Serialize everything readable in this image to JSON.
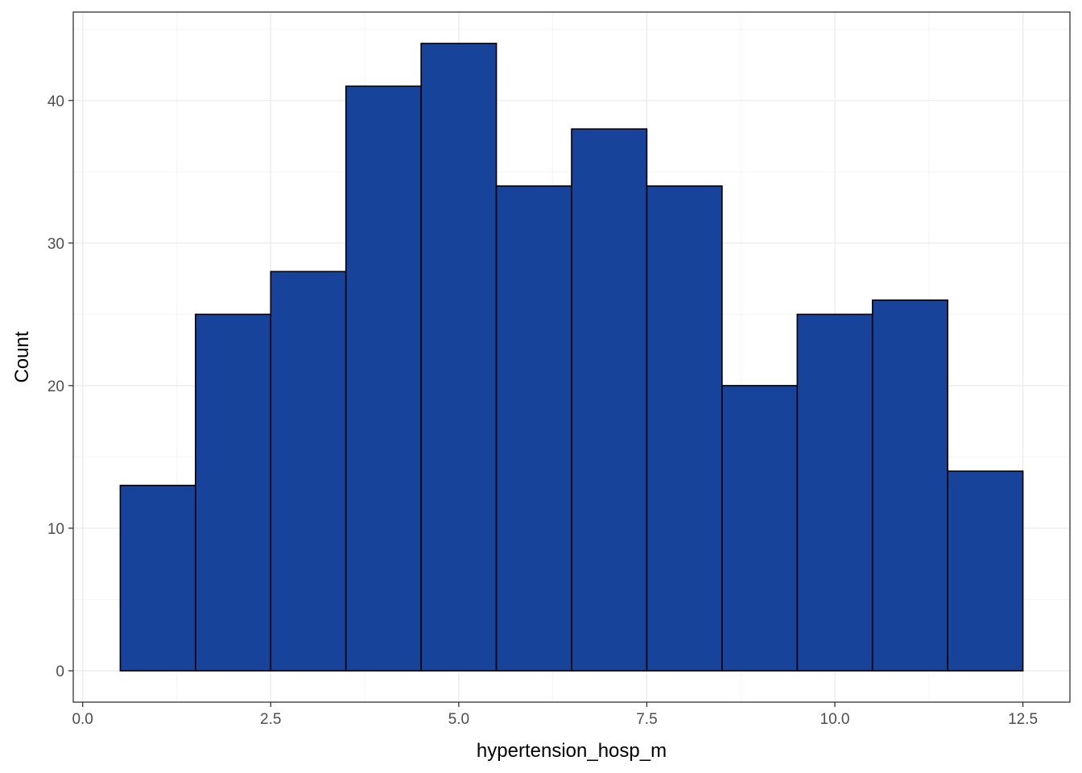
{
  "chart_data": {
    "type": "bar",
    "title": "",
    "xlabel": "hypertension_hosp_m",
    "ylabel": "Count",
    "bins": [
      {
        "x_min": 0.5,
        "x_max": 1.5,
        "count": 13
      },
      {
        "x_min": 1.5,
        "x_max": 2.5,
        "count": 25
      },
      {
        "x_min": 2.5,
        "x_max": 3.5,
        "count": 28
      },
      {
        "x_min": 3.5,
        "x_max": 4.5,
        "count": 41
      },
      {
        "x_min": 4.5,
        "x_max": 5.5,
        "count": 44
      },
      {
        "x_min": 5.5,
        "x_max": 6.5,
        "count": 34
      },
      {
        "x_min": 6.5,
        "x_max": 7.5,
        "count": 38
      },
      {
        "x_min": 7.5,
        "x_max": 8.5,
        "count": 34
      },
      {
        "x_min": 8.5,
        "x_max": 9.5,
        "count": 20
      },
      {
        "x_min": 9.5,
        "x_max": 10.5,
        "count": 25
      },
      {
        "x_min": 10.5,
        "x_max": 11.5,
        "count": 26
      },
      {
        "x_min": 11.5,
        "x_max": 12.5,
        "count": 14
      }
    ],
    "xlim": [
      -0.125,
      13.125
    ],
    "ylim": [
      -2.2,
      46.2
    ],
    "x_ticks": [
      0,
      2.5,
      5,
      7.5,
      10,
      12.5
    ],
    "x_tick_labels": [
      "0.0",
      "2.5",
      "5.0",
      "7.5",
      "10.0",
      "12.5"
    ],
    "y_ticks": [
      0,
      10,
      20,
      30,
      40
    ],
    "y_tick_labels": [
      "0",
      "10",
      "20",
      "30",
      "40"
    ],
    "grid": true,
    "legend": "none",
    "colors": {
      "bar_fill": "#17439A",
      "bar_stroke": "#000000",
      "grid_major": "#EBEBEB",
      "grid_minor": "#F5F5F5",
      "panel_border": "#333333"
    }
  }
}
